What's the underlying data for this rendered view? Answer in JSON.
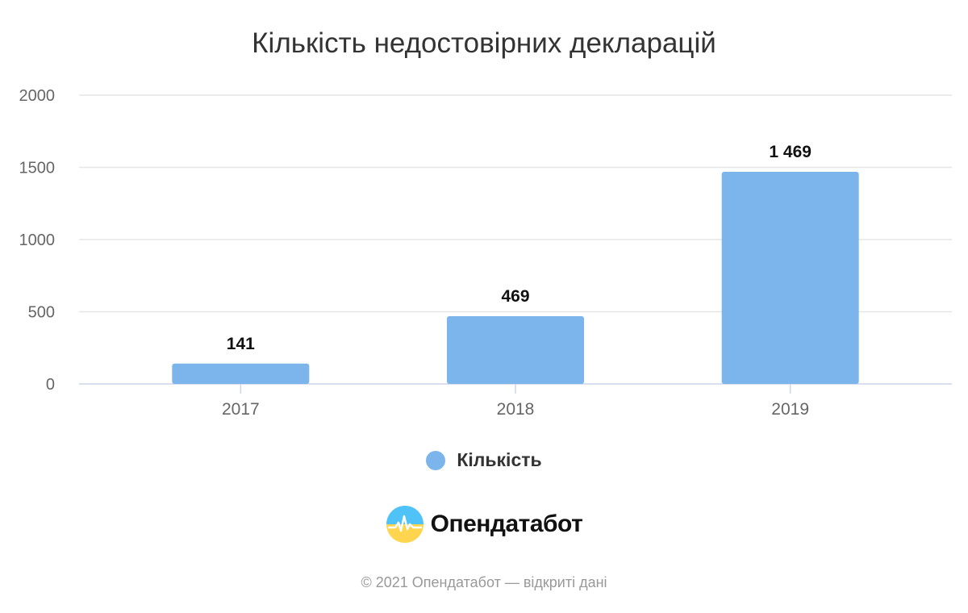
{
  "chart_data": {
    "type": "bar",
    "title": "Кількість недостовірних декларацій",
    "categories": [
      "2017",
      "2018",
      "2019"
    ],
    "series": [
      {
        "name": "Кількість",
        "values": [
          141,
          469,
          1469
        ],
        "labels": [
          "141",
          "469",
          "1 469"
        ],
        "color": "#7cb5ec"
      }
    ],
    "ylim": [
      0,
      2000
    ],
    "yticks": [
      "0",
      "500",
      "1000",
      "1500",
      "2000"
    ],
    "grid": true,
    "legend": "bottom-center"
  },
  "brand": {
    "name": "Опендатабот",
    "icon": "opendatabot-logo-icon"
  },
  "footer": {
    "text": "© 2021 Опендатабот — відкриті дані"
  },
  "colors": {
    "bar": "#7cb5ec",
    "grid": "#e6e6e6",
    "axis": "#ccd6eb",
    "text": "#333333"
  }
}
